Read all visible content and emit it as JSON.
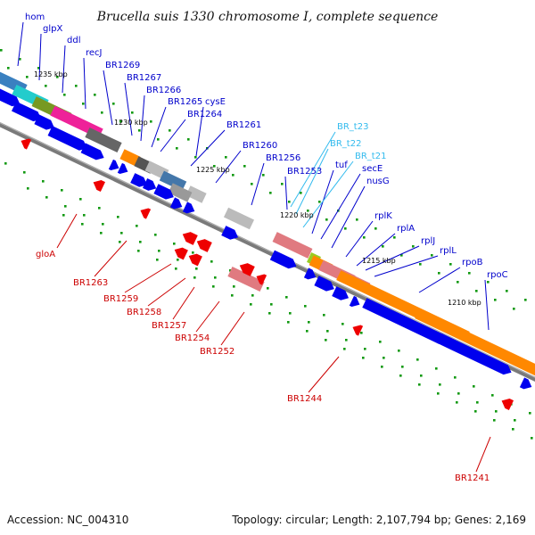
{
  "title": "Brucella suis 1330 chromosome I, complete sequence",
  "footer": {
    "accession": "Accession: NC_004310",
    "info": "Topology: circular; Length: 2,107,794 bp; Genes: 2,169"
  },
  "colors": {
    "label_blue": "#0000cc",
    "label_cyan": "#33bbee",
    "label_red": "#cc0000",
    "strand_blue": "#0000ee",
    "backbone": "#7a7a7a",
    "tick_green": "#119911"
  },
  "scale_labels": [
    "1235 kbp",
    "1230 kbp",
    "1225 kbp",
    "1220 kbp",
    "1215 kbp",
    "1210 kbp"
  ],
  "upper_labels": [
    {
      "text": "hom",
      "color": "blue"
    },
    {
      "text": "glpX",
      "color": "blue"
    },
    {
      "text": "ddl",
      "color": "blue"
    },
    {
      "text": "recJ",
      "color": "blue"
    },
    {
      "text": "BR1269",
      "color": "blue"
    },
    {
      "text": "BR1267",
      "color": "blue"
    },
    {
      "text": "BR1266",
      "color": "blue"
    },
    {
      "text": "BR1265",
      "color": "blue"
    },
    {
      "text": "cysE",
      "color": "blue"
    },
    {
      "text": "BR1264",
      "color": "blue"
    },
    {
      "text": "BR1261",
      "color": "blue"
    },
    {
      "text": "BR1260",
      "color": "blue"
    },
    {
      "text": "BR1256",
      "color": "blue"
    },
    {
      "text": "BR1253",
      "color": "blue"
    },
    {
      "text": "BR_t23",
      "color": "cyan"
    },
    {
      "text": "BR_t22",
      "color": "cyan"
    },
    {
      "text": "tuf",
      "color": "blue"
    },
    {
      "text": "BR_t21",
      "color": "cyan"
    },
    {
      "text": "secE",
      "color": "blue"
    },
    {
      "text": "nusG",
      "color": "blue"
    },
    {
      "text": "rplK",
      "color": "blue"
    },
    {
      "text": "rplA",
      "color": "blue"
    },
    {
      "text": "rplJ",
      "color": "blue"
    },
    {
      "text": "rplL",
      "color": "blue"
    },
    {
      "text": "rpoB",
      "color": "blue"
    },
    {
      "text": "rpoC",
      "color": "blue"
    }
  ],
  "lower_labels": [
    {
      "text": "gloA",
      "color": "red"
    },
    {
      "text": "BR1263",
      "color": "red"
    },
    {
      "text": "BR1259",
      "color": "red"
    },
    {
      "text": "BR1258",
      "color": "red"
    },
    {
      "text": "BR1257",
      "color": "red"
    },
    {
      "text": "BR1254",
      "color": "red"
    },
    {
      "text": "BR1252",
      "color": "red"
    },
    {
      "text": "BR1244",
      "color": "red"
    },
    {
      "text": "BR1241",
      "color": "red"
    }
  ]
}
